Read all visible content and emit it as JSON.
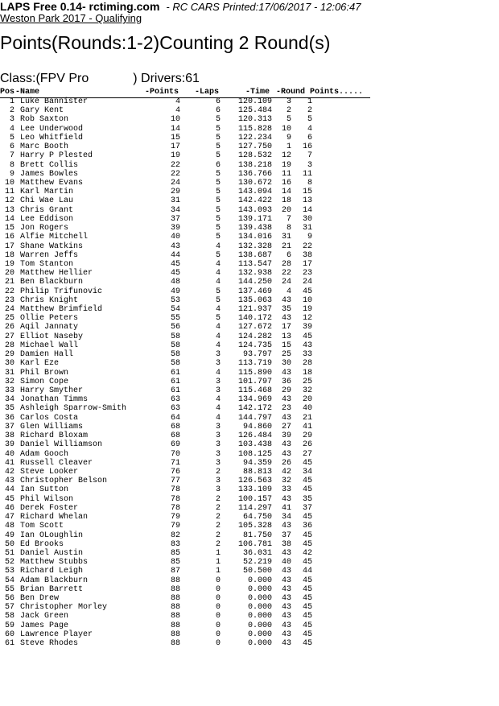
{
  "header": {
    "app_title": "LAPS Free 0.14- rctiming.com",
    "printed": "- RC CARS Printed:17/06/2017 - 12:06:47",
    "event": "Weston Park 2017 - Qualifying"
  },
  "page_title": "Points(Rounds:1-2)Counting 2 Round(s)",
  "class_line": {
    "class_text": "Class:(FPV Pro",
    "drivers_text": ") Drivers:61"
  },
  "columns": {
    "pos": "Pos",
    "name": "-Name",
    "points": "-Points",
    "laps": "-Laps",
    "time": "-Time",
    "round": "-Round",
    "round_points": "Points....."
  },
  "rows": [
    {
      "pos": "1",
      "name": "Luke Bannister",
      "points": "4",
      "laps": "6",
      "time": "120.109",
      "round": "3",
      "round_points": "1"
    },
    {
      "pos": "2",
      "name": "Gary Kent",
      "points": "4",
      "laps": "6",
      "time": "125.484",
      "round": "2",
      "round_points": "2"
    },
    {
      "pos": "3",
      "name": "Rob Saxton",
      "points": "10",
      "laps": "5",
      "time": "120.313",
      "round": "5",
      "round_points": "5"
    },
    {
      "pos": "4",
      "name": "Lee Underwood",
      "points": "14",
      "laps": "5",
      "time": "115.828",
      "round": "10",
      "round_points": "4"
    },
    {
      "pos": "5",
      "name": "Leo Whitfield",
      "points": "15",
      "laps": "5",
      "time": "122.234",
      "round": "9",
      "round_points": "6"
    },
    {
      "pos": "6",
      "name": "Marc Booth",
      "points": "17",
      "laps": "5",
      "time": "127.750",
      "round": "1",
      "round_points": "16"
    },
    {
      "pos": "7",
      "name": "Harry P Plested",
      "points": "19",
      "laps": "5",
      "time": "128.532",
      "round": "12",
      "round_points": "7"
    },
    {
      "pos": "8",
      "name": "Brett Collis",
      "points": "22",
      "laps": "6",
      "time": "138.218",
      "round": "19",
      "round_points": "3"
    },
    {
      "pos": "9",
      "name": "James Bowles",
      "points": "22",
      "laps": "5",
      "time": "136.766",
      "round": "11",
      "round_points": "11"
    },
    {
      "pos": "10",
      "name": "Matthew Evans",
      "points": "24",
      "laps": "5",
      "time": "130.672",
      "round": "16",
      "round_points": "8"
    },
    {
      "pos": "11",
      "name": "Karl Martin",
      "points": "29",
      "laps": "5",
      "time": "143.094",
      "round": "14",
      "round_points": "15"
    },
    {
      "pos": "12",
      "name": "Chi Wae Lau",
      "points": "31",
      "laps": "5",
      "time": "142.422",
      "round": "18",
      "round_points": "13"
    },
    {
      "pos": "13",
      "name": "Chris Grant",
      "points": "34",
      "laps": "5",
      "time": "143.093",
      "round": "20",
      "round_points": "14"
    },
    {
      "pos": "14",
      "name": "Lee Eddison",
      "points": "37",
      "laps": "5",
      "time": "139.171",
      "round": "7",
      "round_points": "30"
    },
    {
      "pos": "15",
      "name": "Jon Rogers",
      "points": "39",
      "laps": "5",
      "time": "139.438",
      "round": "8",
      "round_points": "31"
    },
    {
      "pos": "16",
      "name": "Alfie Mitchell",
      "points": "40",
      "laps": "5",
      "time": "134.016",
      "round": "31",
      "round_points": "9"
    },
    {
      "pos": "17",
      "name": "Shane Watkins",
      "points": "43",
      "laps": "4",
      "time": "132.328",
      "round": "21",
      "round_points": "22"
    },
    {
      "pos": "18",
      "name": "Warren Jeffs",
      "points": "44",
      "laps": "5",
      "time": "138.687",
      "round": "6",
      "round_points": "38"
    },
    {
      "pos": "19",
      "name": "Tom Stanton",
      "points": "45",
      "laps": "4",
      "time": "113.547",
      "round": "28",
      "round_points": "17"
    },
    {
      "pos": "20",
      "name": "Matthew Hellier",
      "points": "45",
      "laps": "4",
      "time": "132.938",
      "round": "22",
      "round_points": "23"
    },
    {
      "pos": "21",
      "name": "Ben Blackburn",
      "points": "48",
      "laps": "4",
      "time": "144.250",
      "round": "24",
      "round_points": "24"
    },
    {
      "pos": "22",
      "name": "Philip Trifunovic",
      "points": "49",
      "laps": "5",
      "time": "137.469",
      "round": "4",
      "round_points": "45"
    },
    {
      "pos": "23",
      "name": "Chris Knight",
      "points": "53",
      "laps": "5",
      "time": "135.063",
      "round": "43",
      "round_points": "10"
    },
    {
      "pos": "24",
      "name": "Matthew Brimfield",
      "points": "54",
      "laps": "4",
      "time": "121.937",
      "round": "35",
      "round_points": "19"
    },
    {
      "pos": "25",
      "name": "Ollie Peters",
      "points": "55",
      "laps": "5",
      "time": "140.172",
      "round": "43",
      "round_points": "12"
    },
    {
      "pos": "26",
      "name": "Aqil Jannaty",
      "points": "56",
      "laps": "4",
      "time": "127.672",
      "round": "17",
      "round_points": "39"
    },
    {
      "pos": "27",
      "name": "Elliot Naseby",
      "points": "58",
      "laps": "4",
      "time": "124.282",
      "round": "13",
      "round_points": "45"
    },
    {
      "pos": "28",
      "name": "Michael Wall",
      "points": "58",
      "laps": "4",
      "time": "124.735",
      "round": "15",
      "round_points": "43"
    },
    {
      "pos": "29",
      "name": "Damien Hall",
      "points": "58",
      "laps": "3",
      "time": "93.797",
      "round": "25",
      "round_points": "33"
    },
    {
      "pos": "30",
      "name": "Karl Eze",
      "points": "58",
      "laps": "3",
      "time": "113.719",
      "round": "30",
      "round_points": "28"
    },
    {
      "pos": "31",
      "name": "Phil Brown",
      "points": "61",
      "laps": "4",
      "time": "115.890",
      "round": "43",
      "round_points": "18"
    },
    {
      "pos": "32",
      "name": "Simon Cope",
      "points": "61",
      "laps": "3",
      "time": "101.797",
      "round": "36",
      "round_points": "25"
    },
    {
      "pos": "33",
      "name": "Harry Smyther",
      "points": "61",
      "laps": "3",
      "time": "115.468",
      "round": "29",
      "round_points": "32"
    },
    {
      "pos": "34",
      "name": "Jonathan Timms",
      "points": "63",
      "laps": "4",
      "time": "134.969",
      "round": "43",
      "round_points": "20"
    },
    {
      "pos": "35",
      "name": "Ashleigh Sparrow-Smith",
      "points": "63",
      "laps": "4",
      "time": "142.172",
      "round": "23",
      "round_points": "40"
    },
    {
      "pos": "36",
      "name": "Carlos Costa",
      "points": "64",
      "laps": "4",
      "time": "144.797",
      "round": "43",
      "round_points": "21"
    },
    {
      "pos": "37",
      "name": "Glen Williams",
      "points": "68",
      "laps": "3",
      "time": "94.860",
      "round": "27",
      "round_points": "41"
    },
    {
      "pos": "38",
      "name": "Richard Bloxam",
      "points": "68",
      "laps": "3",
      "time": "126.484",
      "round": "39",
      "round_points": "29"
    },
    {
      "pos": "39",
      "name": "Daniel Williamson",
      "points": "69",
      "laps": "3",
      "time": "103.438",
      "round": "43",
      "round_points": "26"
    },
    {
      "pos": "40",
      "name": "Adam Gooch",
      "points": "70",
      "laps": "3",
      "time": "108.125",
      "round": "43",
      "round_points": "27"
    },
    {
      "pos": "41",
      "name": "Russell Cleaver",
      "points": "71",
      "laps": "3",
      "time": "94.359",
      "round": "26",
      "round_points": "45"
    },
    {
      "pos": "42",
      "name": "Steve Looker",
      "points": "76",
      "laps": "2",
      "time": "88.813",
      "round": "42",
      "round_points": "34"
    },
    {
      "pos": "43",
      "name": "Christopher Belson",
      "points": "77",
      "laps": "3",
      "time": "126.563",
      "round": "32",
      "round_points": "45"
    },
    {
      "pos": "44",
      "name": "Ian Sutton",
      "points": "78",
      "laps": "3",
      "time": "133.109",
      "round": "33",
      "round_points": "45"
    },
    {
      "pos": "45",
      "name": "Phil Wilson",
      "points": "78",
      "laps": "2",
      "time": "100.157",
      "round": "43",
      "round_points": "35"
    },
    {
      "pos": "46",
      "name": "Derek Foster",
      "points": "78",
      "laps": "2",
      "time": "114.297",
      "round": "41",
      "round_points": "37"
    },
    {
      "pos": "47",
      "name": "Richard Whelan",
      "points": "79",
      "laps": "2",
      "time": "64.750",
      "round": "34",
      "round_points": "45"
    },
    {
      "pos": "48",
      "name": "Tom Scott",
      "points": "79",
      "laps": "2",
      "time": "105.328",
      "round": "43",
      "round_points": "36"
    },
    {
      "pos": "49",
      "name": "Ian OLoughlin",
      "points": "82",
      "laps": "2",
      "time": "81.750",
      "round": "37",
      "round_points": "45"
    },
    {
      "pos": "50",
      "name": "Ed Brooks",
      "points": "83",
      "laps": "2",
      "time": "106.781",
      "round": "38",
      "round_points": "45"
    },
    {
      "pos": "51",
      "name": "Daniel Austin",
      "points": "85",
      "laps": "1",
      "time": "36.031",
      "round": "43",
      "round_points": "42"
    },
    {
      "pos": "52",
      "name": "Matthew Stubbs",
      "points": "85",
      "laps": "1",
      "time": "52.219",
      "round": "40",
      "round_points": "45"
    },
    {
      "pos": "53",
      "name": "Richard Leigh",
      "points": "87",
      "laps": "1",
      "time": "50.500",
      "round": "43",
      "round_points": "44"
    },
    {
      "pos": "54",
      "name": "Adam Blackburn",
      "points": "88",
      "laps": "0",
      "time": "0.000",
      "round": "43",
      "round_points": "45"
    },
    {
      "pos": "55",
      "name": "Brian Barrett",
      "points": "88",
      "laps": "0",
      "time": "0.000",
      "round": "43",
      "round_points": "45"
    },
    {
      "pos": "56",
      "name": "Ben Drew",
      "points": "88",
      "laps": "0",
      "time": "0.000",
      "round": "43",
      "round_points": "45"
    },
    {
      "pos": "57",
      "name": "Christopher Morley",
      "points": "88",
      "laps": "0",
      "time": "0.000",
      "round": "43",
      "round_points": "45"
    },
    {
      "pos": "58",
      "name": "Jack Green",
      "points": "88",
      "laps": "0",
      "time": "0.000",
      "round": "43",
      "round_points": "45"
    },
    {
      "pos": "59",
      "name": "James Page",
      "points": "88",
      "laps": "0",
      "time": "0.000",
      "round": "43",
      "round_points": "45"
    },
    {
      "pos": "60",
      "name": "Lawrence Player",
      "points": "88",
      "laps": "0",
      "time": "0.000",
      "round": "43",
      "round_points": "45"
    },
    {
      "pos": "61",
      "name": "Steve Rhodes",
      "points": "88",
      "laps": "0",
      "time": "0.000",
      "round": "43",
      "round_points": "45"
    }
  ]
}
